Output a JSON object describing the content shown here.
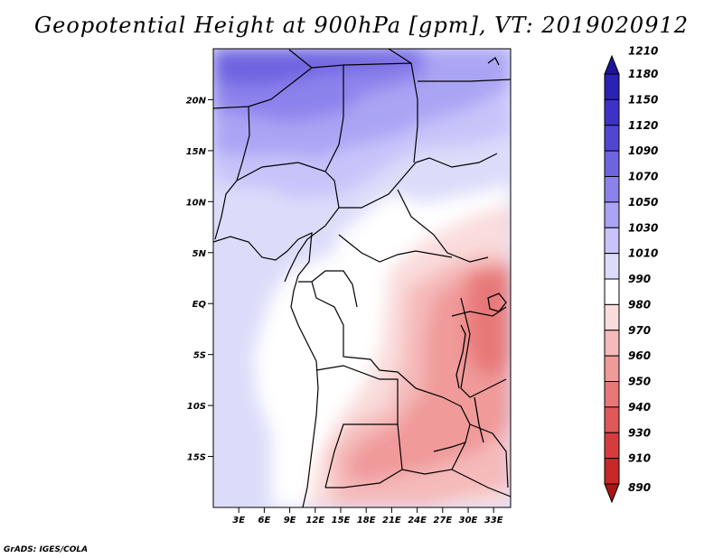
{
  "title": "Geopotential Height at 900hPa [gpm], VT: 2019020912",
  "credit": "GrADS: IGES/COLA",
  "map": {
    "lon_range": [
      0,
      35
    ],
    "lat_range": [
      -20,
      25
    ],
    "x_ticks": [
      "3E",
      "6E",
      "9E",
      "12E",
      "15E",
      "18E",
      "21E",
      "24E",
      "27E",
      "30E",
      "33E"
    ],
    "y_ticks": [
      "20N",
      "15N",
      "10N",
      "5N",
      "EQ",
      "5S",
      "10S",
      "15S"
    ]
  },
  "colorbar": {
    "labels": [
      "1210",
      "1180",
      "1150",
      "1120",
      "1090",
      "1070",
      "1050",
      "1030",
      "1010",
      "990",
      "980",
      "970",
      "960",
      "950",
      "940",
      "930",
      "910",
      "890"
    ],
    "colors": [
      "#1e1496",
      "#2a22b4",
      "#3c32c8",
      "#5046d2",
      "#6e64e0",
      "#8c82ec",
      "#aaa4f4",
      "#c8c4fa",
      "#dcdcfa",
      "#ffffff",
      "#fadcdc",
      "#f5baba",
      "#f09a9a",
      "#e87878",
      "#e05858",
      "#d63c3c",
      "#c82828",
      "#aa1414"
    ]
  }
}
